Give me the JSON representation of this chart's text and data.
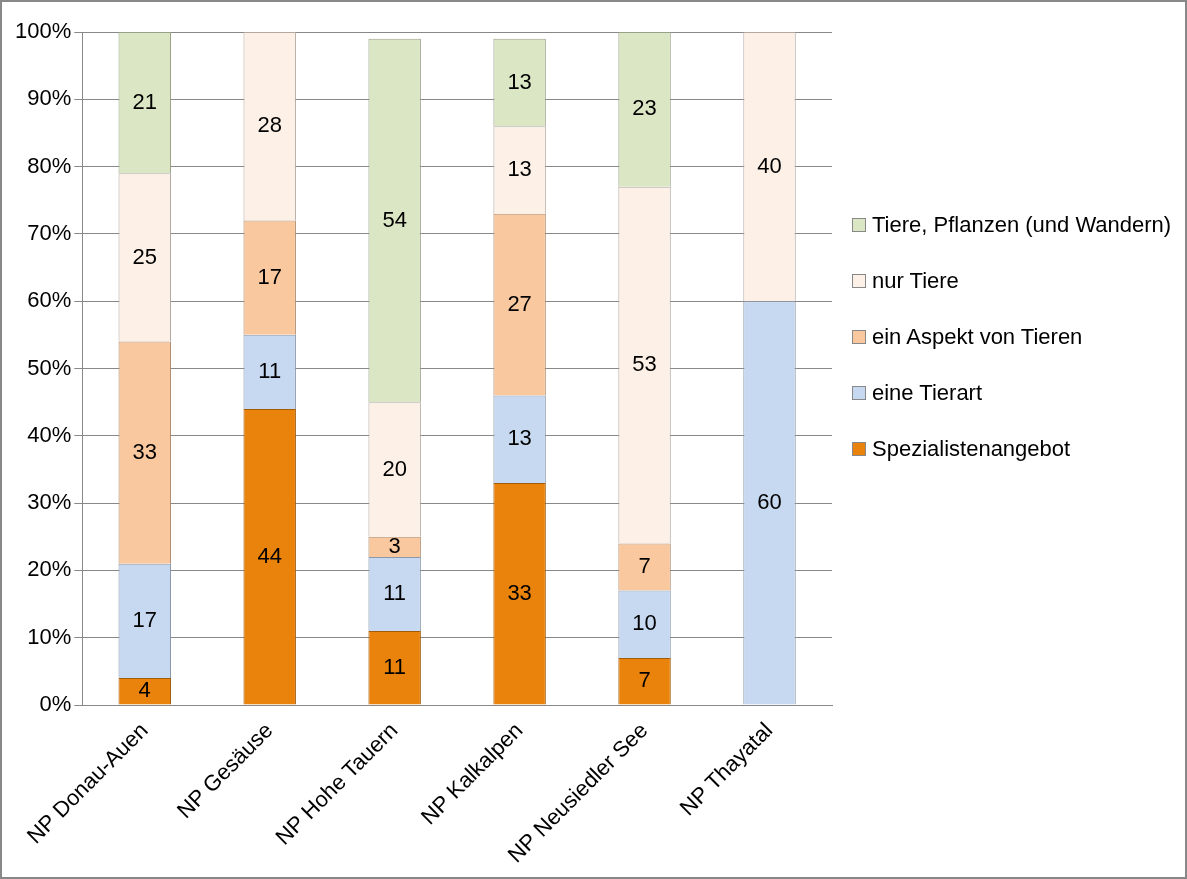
{
  "chart_data": {
    "type": "bar",
    "stacked": true,
    "categories": [
      "NP Donau-Auen",
      "NP Gesäuse",
      "NP Hohe Tauern",
      "NP Kalkalpen",
      "NP Neusiedler See",
      "NP Thayatal"
    ],
    "series": [
      {
        "name": "Spezialistenangebot",
        "color": "#e9830c",
        "values": [
          4,
          44,
          11,
          33,
          7,
          null
        ]
      },
      {
        "name": "eine Tierart",
        "color": "#c6d9f1",
        "values": [
          17,
          11,
          11,
          13,
          10,
          60
        ]
      },
      {
        "name": "ein Aspekt von Tieren",
        "color": "#f9c89f",
        "values": [
          33,
          17,
          3,
          27,
          7,
          null
        ]
      },
      {
        "name": "nur Tiere",
        "color": "#fdf0e6",
        "values": [
          25,
          28,
          20,
          13,
          53,
          40
        ]
      },
      {
        "name": "Tiere, Pflanzen (und Wandern)",
        "color": "#dbe6c4",
        "values": [
          21,
          null,
          54,
          13,
          23,
          null
        ]
      }
    ],
    "ylim": [
      0,
      100
    ],
    "yticks": [
      {
        "value": 0,
        "label": "0%"
      },
      {
        "value": 10,
        "label": "10%"
      },
      {
        "value": 20,
        "label": "20%"
      },
      {
        "value": 30,
        "label": "30%"
      },
      {
        "value": 40,
        "label": "40%"
      },
      {
        "value": 50,
        "label": "50%"
      },
      {
        "value": 60,
        "label": "60%"
      },
      {
        "value": 70,
        "label": "70%"
      },
      {
        "value": 80,
        "label": "80%"
      },
      {
        "value": 90,
        "label": "90%"
      },
      {
        "value": 100,
        "label": "100%"
      }
    ],
    "grid": "y",
    "legend": "right",
    "data_labels": true
  }
}
